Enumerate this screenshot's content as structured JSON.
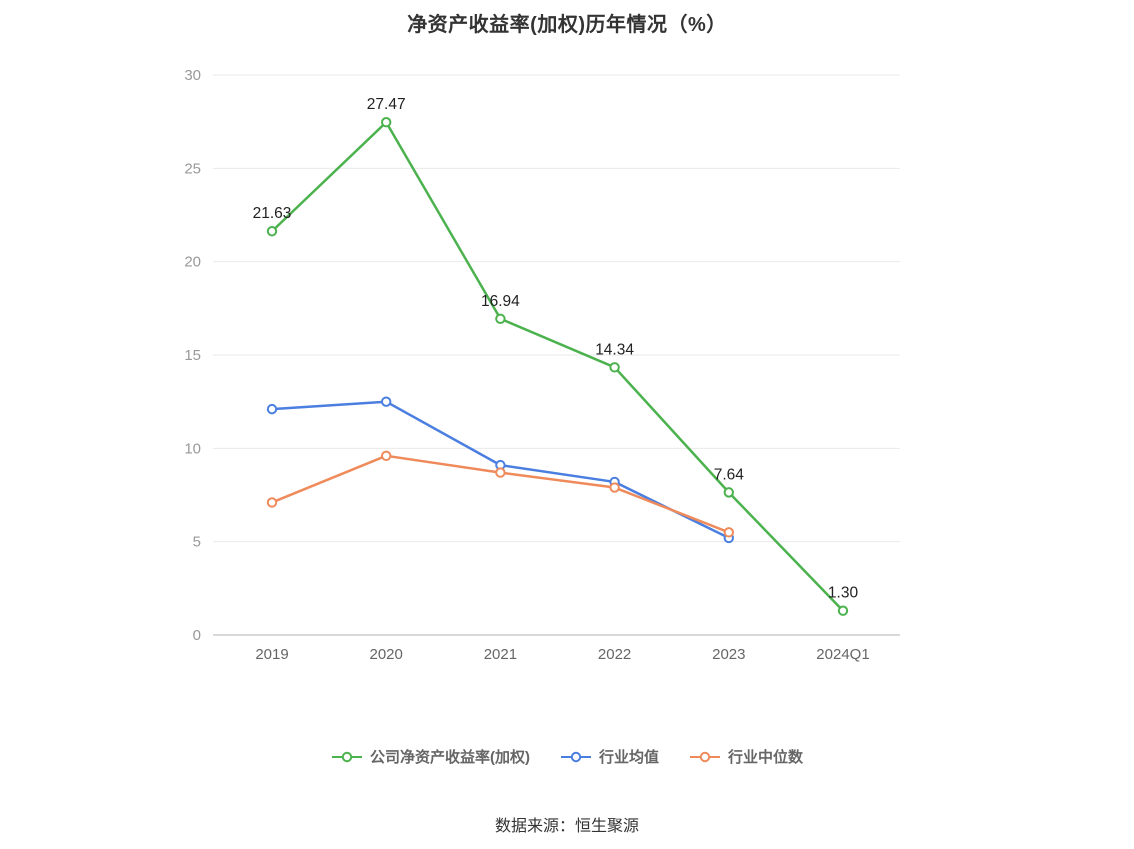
{
  "chart_data": {
    "type": "line",
    "title": "净资产收益率(加权)历年情况（%）",
    "categories": [
      "2019",
      "2020",
      "2021",
      "2022",
      "2023",
      "2024Q1"
    ],
    "y_ticks": [
      0,
      5,
      10,
      15,
      20,
      25,
      30
    ],
    "ylim": [
      0,
      30
    ],
    "grid": true,
    "legend_position": "bottom",
    "series": [
      {
        "name": "公司净资产收益率(加权)",
        "color": "#4bb24e",
        "values": [
          21.63,
          27.47,
          16.94,
          14.34,
          7.64,
          1.3
        ],
        "labels": [
          "21.63",
          "27.47",
          "16.94",
          "14.34",
          "7.64",
          "1.30"
        ]
      },
      {
        "name": "行业均值",
        "color": "#4a7ee0",
        "values": [
          12.1,
          12.5,
          9.1,
          8.2,
          5.2,
          null
        ]
      },
      {
        "name": "行业中位数",
        "color": "#ef8a5b",
        "values": [
          7.1,
          9.6,
          8.7,
          7.9,
          5.5,
          null
        ]
      }
    ]
  },
  "source": "数据来源：恒生聚源",
  "colors": {
    "grid": "#e9e9e9",
    "axis": "#cccccc",
    "tick_label": "#999999",
    "x_label": "#666666",
    "data_label": "#222222"
  }
}
